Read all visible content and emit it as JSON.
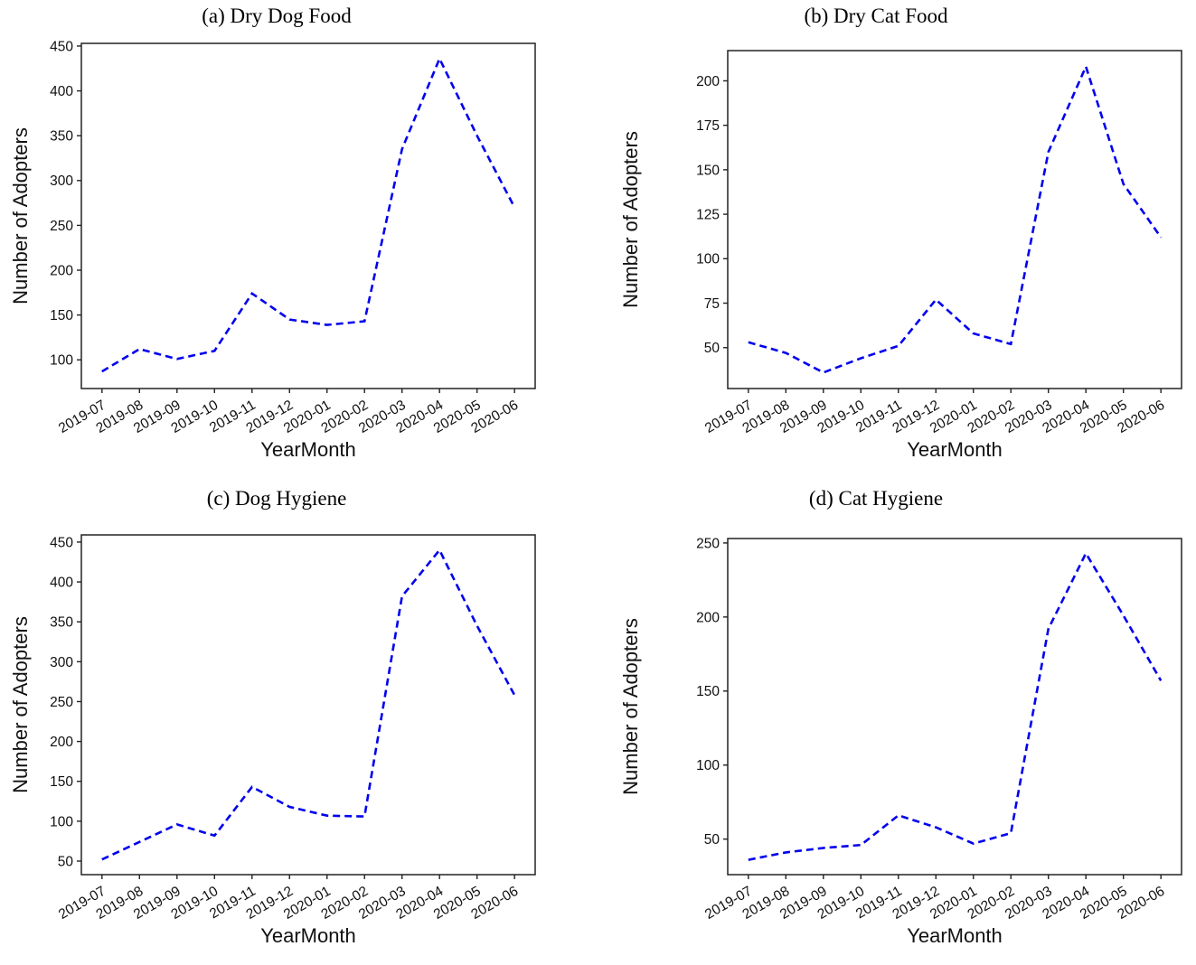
{
  "chart_data": [
    {
      "id": "a",
      "type": "line",
      "title": "(a) Dry Dog Food",
      "xlabel": "YearMonth",
      "ylabel": "Number of Adopters",
      "categories": [
        "2019-07",
        "2019-08",
        "2019-09",
        "2019-10",
        "2019-11",
        "2019-12",
        "2020-01",
        "2020-02",
        "2020-03",
        "2020-04",
        "2020-05",
        "2020-06"
      ],
      "values": [
        87,
        112,
        101,
        110,
        174,
        145,
        139,
        143,
        335,
        436,
        350,
        270
      ],
      "ylim": [
        68,
        453
      ],
      "yticks": [
        100,
        150,
        200,
        250,
        300,
        350,
        400,
        450
      ],
      "line_color": "#0000EE",
      "line_style": "dashed",
      "grid": false,
      "legend": false
    },
    {
      "id": "b",
      "type": "line",
      "title": "(b) Dry Cat Food",
      "xlabel": "YearMonth",
      "ylabel": "Number of Adopters",
      "categories": [
        "2019-07",
        "2019-08",
        "2019-09",
        "2019-10",
        "2019-11",
        "2019-12",
        "2020-01",
        "2020-02",
        "2020-03",
        "2020-04",
        "2020-05",
        "2020-06"
      ],
      "values": [
        53,
        47,
        36,
        44,
        51,
        77,
        58,
        52,
        160,
        208,
        142,
        112
      ],
      "ylim": [
        27,
        217
      ],
      "yticks": [
        50,
        75,
        100,
        125,
        150,
        175,
        200
      ],
      "line_color": "#0000EE",
      "line_style": "dashed",
      "grid": false,
      "legend": false
    },
    {
      "id": "c",
      "type": "line",
      "title": "(c) Dog Hygiene",
      "xlabel": "YearMonth",
      "ylabel": "Number of Adopters",
      "categories": [
        "2019-07",
        "2019-08",
        "2019-09",
        "2019-10",
        "2019-11",
        "2019-12",
        "2020-01",
        "2020-02",
        "2020-03",
        "2020-04",
        "2020-05",
        "2020-06"
      ],
      "values": [
        52,
        74,
        96,
        82,
        143,
        118,
        107,
        106,
        382,
        440,
        345,
        258
      ],
      "ylim": [
        33,
        459
      ],
      "yticks": [
        50,
        100,
        150,
        200,
        250,
        300,
        350,
        400,
        450
      ],
      "line_color": "#0000EE",
      "line_style": "dashed",
      "grid": false,
      "legend": false
    },
    {
      "id": "d",
      "type": "line",
      "title": "(d) Cat Hygiene",
      "xlabel": "YearMonth",
      "ylabel": "Number of Adopters",
      "categories": [
        "2019-07",
        "2019-08",
        "2019-09",
        "2019-10",
        "2019-11",
        "2019-12",
        "2020-01",
        "2020-02",
        "2020-03",
        "2020-04",
        "2020-05",
        "2020-06"
      ],
      "values": [
        36,
        41,
        44,
        46,
        66,
        58,
        47,
        54,
        192,
        243,
        201,
        157
      ],
      "ylim": [
        26,
        253
      ],
      "yticks": [
        50,
        100,
        150,
        200,
        250
      ],
      "line_color": "#0000EE",
      "line_style": "dashed",
      "grid": false,
      "legend": false
    }
  ],
  "style": {
    "axis_color": "#222222",
    "text_color": "#111111",
    "background": "#ffffff"
  }
}
